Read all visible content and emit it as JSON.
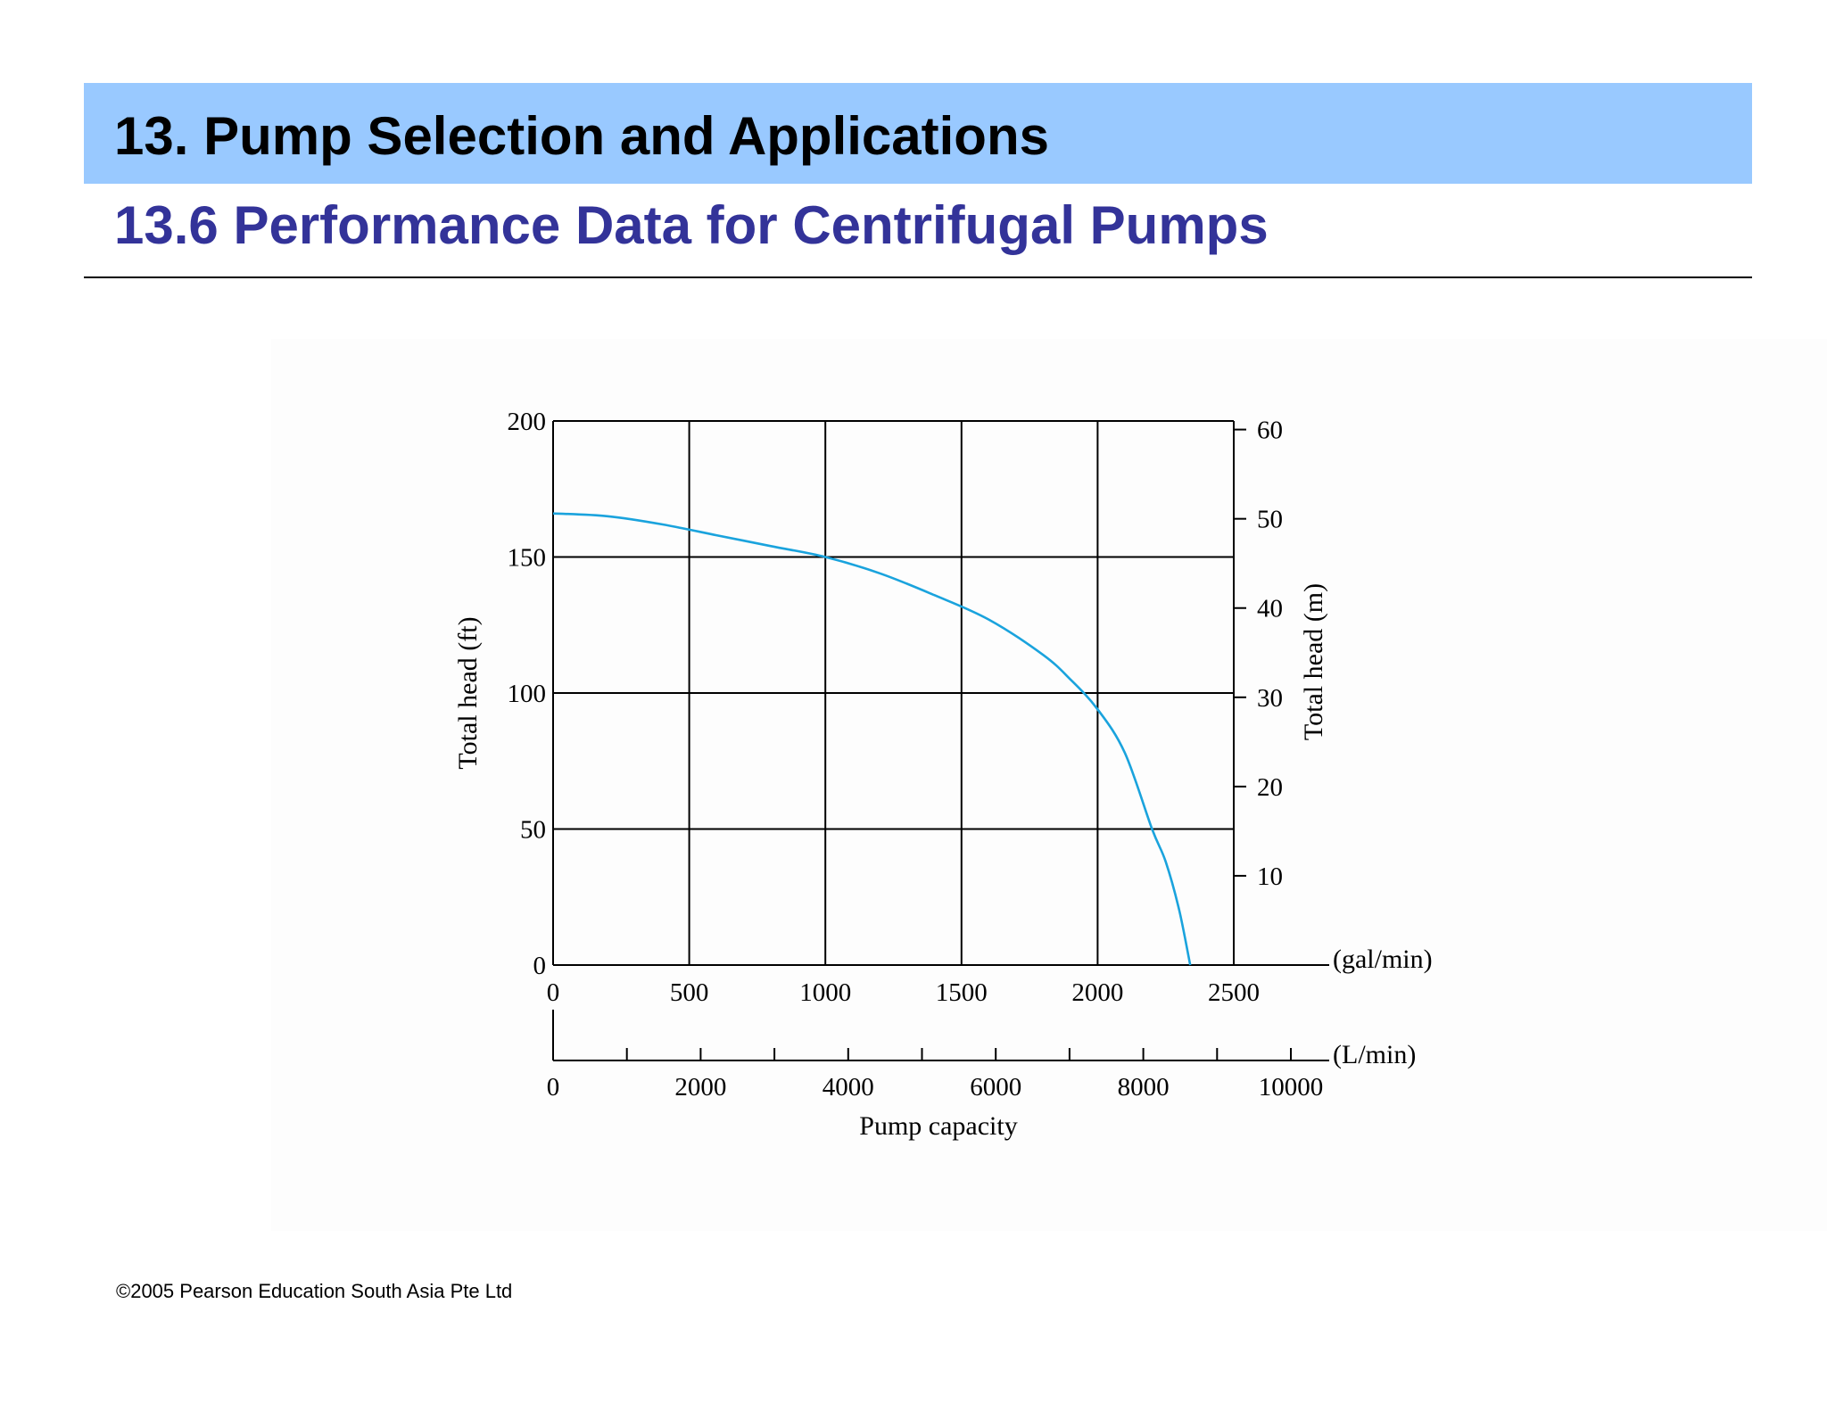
{
  "slide": {
    "title": "13. Pump Selection and Applications",
    "subtitle": "13.6 Performance Data for Centrifugal Pumps",
    "footer": "©2005 Pearson Education South Asia Pte Ltd"
  },
  "colors": {
    "header_band": "#99c9ff",
    "subtitle": "#333399",
    "curve": "#1aa3dd"
  },
  "chart_data": {
    "type": "line",
    "title": "",
    "xlabel": "Pump capacity",
    "x_unit_primary": "(gal/min)",
    "x_unit_secondary": "(L/min)",
    "ylabel_left": "Total head (ft)",
    "ylabel_right": "Total head (m)",
    "xlim": [
      0,
      2500
    ],
    "ylim": [
      0,
      200
    ],
    "x_ticks": [
      0,
      500,
      1000,
      1500,
      2000,
      2500
    ],
    "y_ticks": [
      0,
      50,
      100,
      150,
      200
    ],
    "right_ticks_m": [
      10,
      20,
      30,
      40,
      50,
      60
    ],
    "secondary_x_ticks": [
      0,
      2000,
      4000,
      6000,
      8000,
      10000
    ],
    "grid": true,
    "series": [
      {
        "x": [
          0,
          200,
          400,
          600,
          800,
          1000,
          1200,
          1400,
          1600,
          1800,
          1900,
          2000,
          2100,
          2200,
          2250,
          2300,
          2340
        ],
        "y": [
          166,
          165,
          162,
          158,
          154,
          150,
          144,
          136,
          127,
          114,
          105,
          94,
          78,
          50,
          38,
          20,
          0
        ]
      }
    ]
  }
}
